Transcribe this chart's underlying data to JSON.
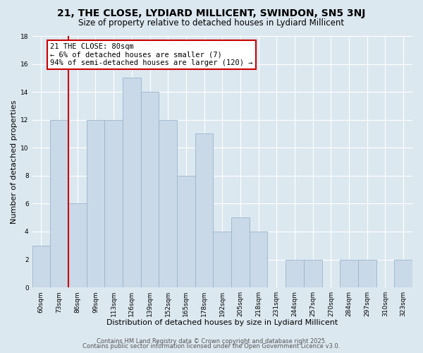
{
  "title": "21, THE CLOSE, LYDIARD MILLICENT, SWINDON, SN5 3NJ",
  "subtitle": "Size of property relative to detached houses in Lydiard Millicent",
  "xlabel": "Distribution of detached houses by size in Lydiard Millicent",
  "ylabel": "Number of detached properties",
  "bar_labels": [
    "60sqm",
    "73sqm",
    "86sqm",
    "99sqm",
    "113sqm",
    "126sqm",
    "139sqm",
    "152sqm",
    "165sqm",
    "178sqm",
    "192sqm",
    "205sqm",
    "218sqm",
    "231sqm",
    "244sqm",
    "257sqm",
    "270sqm",
    "284sqm",
    "297sqm",
    "310sqm",
    "323sqm"
  ],
  "bar_values": [
    3,
    12,
    6,
    12,
    12,
    15,
    14,
    12,
    8,
    11,
    4,
    5,
    4,
    0,
    2,
    2,
    0,
    2,
    2,
    0,
    2
  ],
  "bar_color": "#c9d9e8",
  "bar_edge_color": "#9ab4cc",
  "bar_width": 1.0,
  "ylim": [
    0,
    18
  ],
  "yticks": [
    0,
    2,
    4,
    6,
    8,
    10,
    12,
    14,
    16,
    18
  ],
  "vline_x": 1.5,
  "vline_color": "#cc0000",
  "annotation_title": "21 THE CLOSE: 80sqm",
  "annotation_line1": "← 6% of detached houses are smaller (7)",
  "annotation_line2": "94% of semi-detached houses are larger (120) →",
  "annotation_box_color": "#ffffff",
  "annotation_box_edge": "#cc0000",
  "footer_line1": "Contains HM Land Registry data © Crown copyright and database right 2025.",
  "footer_line2": "Contains public sector information licensed under the Open Government Licence v3.0.",
  "background_color": "#dce8f0",
  "plot_background": "#dce8f0",
  "grid_color": "#ffffff",
  "title_fontsize": 10,
  "subtitle_fontsize": 8.5,
  "axis_label_fontsize": 8,
  "tick_fontsize": 6.5,
  "footer_fontsize": 6,
  "annotation_fontsize": 7.5
}
